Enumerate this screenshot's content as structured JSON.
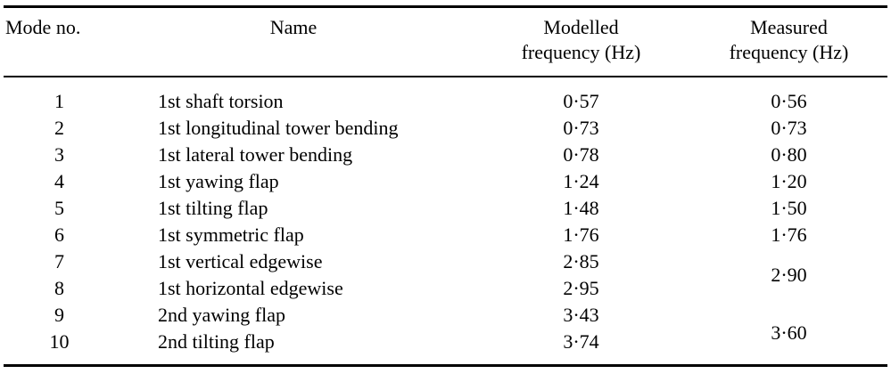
{
  "table": {
    "headers": {
      "mode": "Mode no.",
      "name": "Name",
      "modelled_line1": "Modelled",
      "modelled_line2": "frequency (Hz)",
      "measured_line1": "Measured",
      "measured_line2": "frequency (Hz)"
    },
    "rows": [
      {
        "mode": "1",
        "name": "1st shaft torsion",
        "modelled": "0·57",
        "measured": "0·56"
      },
      {
        "mode": "2",
        "name": "1st longitudinal tower bending",
        "modelled": "0·73",
        "measured": "0·73"
      },
      {
        "mode": "3",
        "name": "1st lateral tower bending",
        "modelled": "0·78",
        "measured": "0·80"
      },
      {
        "mode": "4",
        "name": "1st yawing flap",
        "modelled": "1·24",
        "measured": "1·20"
      },
      {
        "mode": "5",
        "name": "1st tilting flap",
        "modelled": "1·48",
        "measured": "1·50"
      },
      {
        "mode": "6",
        "name": "1st symmetric flap",
        "modelled": "1·76",
        "measured": "1·76"
      },
      {
        "mode": "7",
        "name": "1st vertical edgewise",
        "modelled": "2·85",
        "measured": "2·90",
        "measured_rowspan": 2
      },
      {
        "mode": "8",
        "name": "1st horizontal edgewise",
        "modelled": "2·95"
      },
      {
        "mode": "9",
        "name": "2nd yawing flap",
        "modelled": "3·43",
        "measured": "3·60",
        "measured_rowspan": 2
      },
      {
        "mode": "10",
        "name": "2nd tilting flap",
        "modelled": "3·74"
      }
    ]
  }
}
